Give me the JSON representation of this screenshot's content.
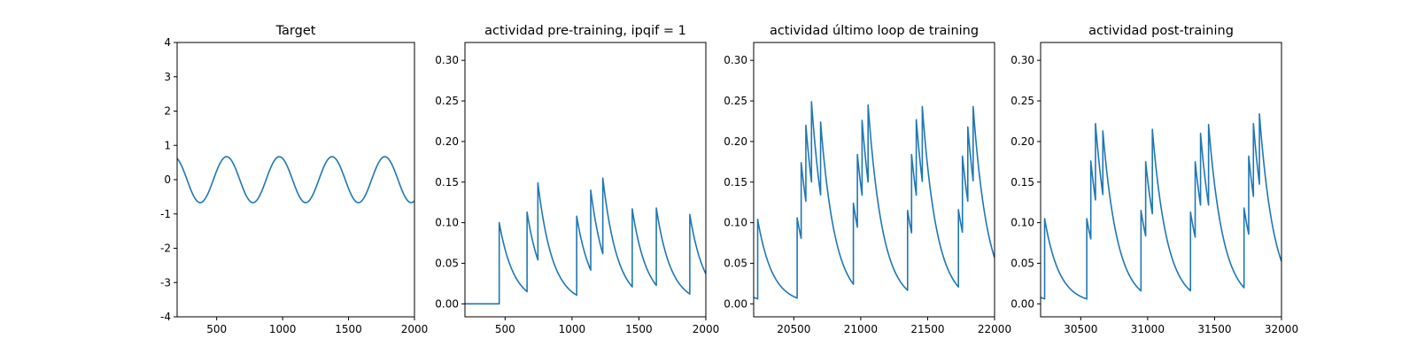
{
  "colors": {
    "series": "#1f77b4",
    "axes": "#000000",
    "background": "#ffffff"
  },
  "chart_data": [
    {
      "type": "line",
      "title": "Target",
      "xlabel": "",
      "ylabel": "",
      "xlim": [
        200,
        2000
      ],
      "ylim": [
        -4,
        4
      ],
      "xticks": [
        500,
        1000,
        1500,
        2000
      ],
      "yticks": [
        -4,
        -3,
        -2,
        -1,
        0,
        1,
        2,
        3,
        4
      ],
      "grid": false,
      "series": [
        {
          "kind": "sinusoid",
          "amplitude": 0.67,
          "period": 400,
          "first_peak_x": 575
        }
      ]
    },
    {
      "type": "line",
      "title": "actividad pre-training, ipqif = 1",
      "xlabel": "",
      "ylabel": "",
      "xlim": [
        200,
        2000
      ],
      "ylim": [
        -0.016,
        0.322
      ],
      "xticks": [
        500,
        1000,
        1500,
        2000
      ],
      "yticks": [
        0.0,
        0.05,
        0.1,
        0.15,
        0.2,
        0.25,
        0.3
      ],
      "ytick_labels": [
        "0.00",
        "0.05",
        "0.10",
        "0.15",
        "0.20",
        "0.25",
        "0.30"
      ],
      "grid": false,
      "series": [
        {
          "kind": "decay",
          "tau": 110,
          "points": [
            {
              "x": 200,
              "y": 0.0
            },
            {
              "x": 456,
              "y": 0.0,
              "jump": 0.1
            },
            {
              "x": 664,
              "y": 0.0,
              "jump": 0.113
            },
            {
              "x": 745,
              "y": 0.0,
              "jump": 0.149
            },
            {
              "x": 1035,
              "y": 0.0,
              "jump": 0.108
            },
            {
              "x": 1140,
              "y": 0.0,
              "jump": 0.14
            },
            {
              "x": 1230,
              "y": 0.0,
              "jump": 0.155
            },
            {
              "x": 1450,
              "y": 0.0,
              "jump": 0.117
            },
            {
              "x": 1630,
              "y": 0.0,
              "jump": 0.118
            },
            {
              "x": 1880,
              "y": 0.0,
              "jump": 0.11
            }
          ],
          "end_x": 2000,
          "start_value": 0.0
        }
      ]
    },
    {
      "type": "line",
      "title": "actividad último loop de training",
      "xlabel": "",
      "ylabel": "",
      "xlim": [
        20200,
        22000
      ],
      "ylim": [
        -0.016,
        0.322
      ],
      "xticks": [
        20500,
        21000,
        21500,
        22000
      ],
      "yticks": [
        0.0,
        0.05,
        0.1,
        0.15,
        0.2,
        0.25,
        0.3
      ],
      "ytick_labels": [
        "0.00",
        "0.05",
        "0.10",
        "0.15",
        "0.20",
        "0.25",
        "0.30"
      ],
      "grid": false,
      "series": [
        {
          "kind": "decay",
          "tau": 110,
          "start_value": 0.008,
          "end_x": 22000,
          "points": [
            {
              "x": 20230,
              "jump": 0.104
            },
            {
              "x": 20525,
              "jump": 0.106
            },
            {
              "x": 20555,
              "jump": 0.174
            },
            {
              "x": 20590,
              "jump": 0.22
            },
            {
              "x": 20632,
              "jump": 0.249
            },
            {
              "x": 20700,
              "jump": 0.224
            },
            {
              "x": 20945,
              "jump": 0.124
            },
            {
              "x": 20975,
              "jump": 0.184
            },
            {
              "x": 21010,
              "jump": 0.226
            },
            {
              "x": 21055,
              "jump": 0.245
            },
            {
              "x": 21350,
              "jump": 0.115
            },
            {
              "x": 21380,
              "jump": 0.184
            },
            {
              "x": 21415,
              "jump": 0.227
            },
            {
              "x": 21460,
              "jump": 0.243
            },
            {
              "x": 21730,
              "jump": 0.116
            },
            {
              "x": 21760,
              "jump": 0.182
            },
            {
              "x": 21800,
              "jump": 0.218
            },
            {
              "x": 21840,
              "jump": 0.243
            }
          ]
        }
      ]
    },
    {
      "type": "line",
      "title": "actividad post-training",
      "xlabel": "",
      "ylabel": "",
      "xlim": [
        30200,
        32000
      ],
      "ylim": [
        -0.016,
        0.322
      ],
      "xticks": [
        30500,
        31000,
        31500,
        32000
      ],
      "yticks": [
        0.0,
        0.05,
        0.1,
        0.15,
        0.2,
        0.25,
        0.3
      ],
      "ytick_labels": [
        "0.00",
        "0.05",
        "0.10",
        "0.15",
        "0.20",
        "0.25",
        "0.30"
      ],
      "grid": false,
      "series": [
        {
          "kind": "decay",
          "tau": 110,
          "start_value": 0.008,
          "end_x": 32000,
          "points": [
            {
              "x": 30230,
              "jump": 0.105
            },
            {
              "x": 30545,
              "jump": 0.105
            },
            {
              "x": 30575,
              "jump": 0.176
            },
            {
              "x": 30610,
              "jump": 0.222
            },
            {
              "x": 30665,
              "jump": 0.213
            },
            {
              "x": 30950,
              "jump": 0.115
            },
            {
              "x": 30985,
              "jump": 0.175
            },
            {
              "x": 31035,
              "jump": 0.215
            },
            {
              "x": 31320,
              "jump": 0.113
            },
            {
              "x": 31355,
              "jump": 0.175
            },
            {
              "x": 31395,
              "jump": 0.21
            },
            {
              "x": 31455,
              "jump": 0.221
            },
            {
              "x": 31720,
              "jump": 0.118
            },
            {
              "x": 31755,
              "jump": 0.182
            },
            {
              "x": 31790,
              "jump": 0.222
            },
            {
              "x": 31835,
              "jump": 0.234
            }
          ]
        }
      ]
    }
  ]
}
